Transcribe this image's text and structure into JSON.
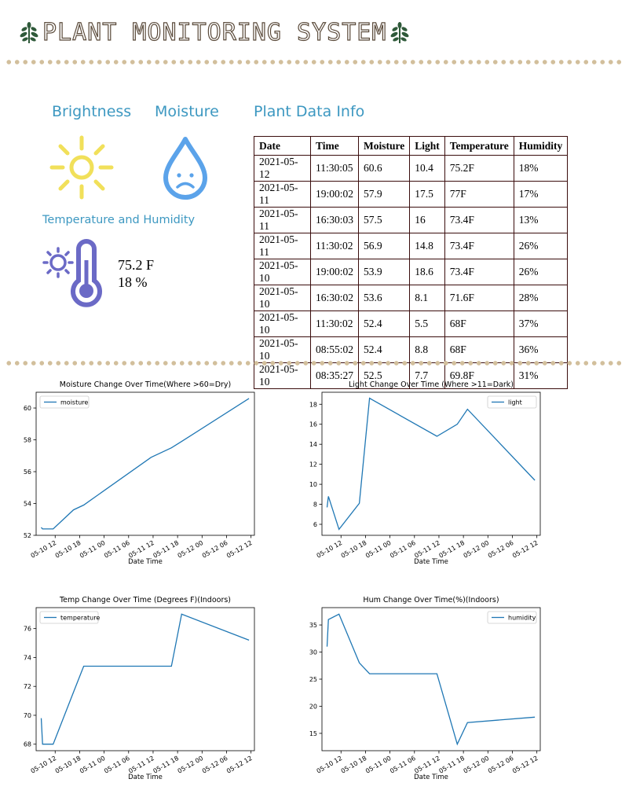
{
  "header": {
    "title": "PLANT MONITORING SYSTEM"
  },
  "sections": {
    "brightness": "Brightness",
    "moisture": "Moisture",
    "plant_data": "Plant Data Info",
    "temp_humidity": "Temperature and Humidity"
  },
  "current": {
    "temperature": "75.2 F",
    "humidity": "18 %"
  },
  "colors": {
    "accent": "#3d98c1",
    "sun": "#f1e05a",
    "drop": "#5ba3ea",
    "thermo": "#6b6ac6",
    "line": "#1f77b4",
    "dots": "#d2bf9c"
  },
  "icons": [
    "tree-icon",
    "sun-icon",
    "sad-water-drop-icon",
    "sun-thermometer-icon"
  ],
  "table": {
    "headers": [
      "Date",
      "Time",
      "Moisture",
      "Light",
      "Temperature",
      "Humidity"
    ],
    "rows": [
      [
        "2021-05-12",
        "11:30:05",
        "60.6",
        "10.4",
        "75.2F",
        "18%"
      ],
      [
        "2021-05-11",
        "19:00:02",
        "57.9",
        "17.5",
        "77F",
        "17%"
      ],
      [
        "2021-05-11",
        "16:30:03",
        "57.5",
        "16",
        "73.4F",
        "13%"
      ],
      [
        "2021-05-11",
        "11:30:02",
        "56.9",
        "14.8",
        "73.4F",
        "26%"
      ],
      [
        "2021-05-10",
        "19:00:02",
        "53.9",
        "18.6",
        "73.4F",
        "26%"
      ],
      [
        "2021-05-10",
        "16:30:02",
        "53.6",
        "8.1",
        "71.6F",
        "28%"
      ],
      [
        "2021-05-10",
        "11:30:02",
        "52.4",
        "5.5",
        "68F",
        "37%"
      ],
      [
        "2021-05-10",
        "08:55:02",
        "52.4",
        "8.8",
        "68F",
        "36%"
      ],
      [
        "2021-05-10",
        "08:35:27",
        "52.5",
        "7.7",
        "69.8F",
        "31%"
      ]
    ]
  },
  "chart_data": [
    {
      "type": "line",
      "title": "Moisture Change Over Time(Where >60=Dry)",
      "xlabel": "Date Time",
      "ylabel": "",
      "legend": "top-left",
      "grid": false,
      "x_ticks": [
        "05-10 12",
        "05-10 18",
        "05-11 00",
        "05-11 06",
        "05-11 12",
        "05-11 18",
        "05-12 00",
        "05-12 06",
        "05-12 12"
      ],
      "y_ticks": [
        52,
        54,
        56,
        58,
        60
      ],
      "xlim": [
        "2021-05-10 07:20",
        "2021-05-12 12:50"
      ],
      "ylim": [
        52.0,
        60.99
      ],
      "series": [
        {
          "name": "moisture",
          "x": [
            "2021-05-10 08:35:27",
            "2021-05-10 08:55:02",
            "2021-05-10 11:30:02",
            "2021-05-10 16:30:02",
            "2021-05-10 19:00:02",
            "2021-05-11 11:30:02",
            "2021-05-11 16:30:03",
            "2021-05-11 19:00:02",
            "2021-05-12 11:30:05"
          ],
          "values": [
            52.5,
            52.4,
            52.4,
            53.6,
            53.9,
            56.9,
            57.5,
            57.9,
            60.6
          ]
        }
      ]
    },
    {
      "type": "line",
      "title": "Light Change Over Time (Where >11=Dark)",
      "xlabel": "Date Time",
      "ylabel": "",
      "legend": "top-right",
      "grid": false,
      "x_ticks": [
        "05-10 12",
        "05-10 18",
        "05-11 00",
        "05-11 06",
        "05-11 12",
        "05-11 18",
        "05-12 00",
        "05-12 06",
        "05-12 12"
      ],
      "y_ticks": [
        6,
        8,
        10,
        12,
        14,
        16,
        18
      ],
      "xlim": [
        "2021-05-10 07:20",
        "2021-05-12 12:50"
      ],
      "ylim": [
        4.9,
        19.2
      ],
      "series": [
        {
          "name": "light",
          "x": [
            "2021-05-10 08:35:27",
            "2021-05-10 08:55:02",
            "2021-05-10 11:30:02",
            "2021-05-10 16:30:02",
            "2021-05-10 19:00:02",
            "2021-05-11 11:30:02",
            "2021-05-11 16:30:03",
            "2021-05-11 19:00:02",
            "2021-05-12 11:30:05"
          ],
          "values": [
            7.7,
            8.8,
            5.5,
            8.1,
            18.6,
            14.8,
            16,
            17.5,
            10.4
          ]
        }
      ]
    },
    {
      "type": "line",
      "title": "Temp Change Over Time (Degrees F)(Indoors)",
      "xlabel": "Date Time",
      "ylabel": "",
      "legend": "top-left",
      "grid": false,
      "x_ticks": [
        "05-10 12",
        "05-10 18",
        "05-11 00",
        "05-11 06",
        "05-11 12",
        "05-11 18",
        "05-12 00",
        "05-12 06",
        "05-12 12"
      ],
      "y_ticks": [
        68,
        70,
        72,
        74,
        76
      ],
      "xlim": [
        "2021-05-10 07:20",
        "2021-05-12 12:50"
      ],
      "ylim": [
        67.55,
        77.45
      ],
      "series": [
        {
          "name": "temperature",
          "x": [
            "2021-05-10 08:35:27",
            "2021-05-10 08:55:02",
            "2021-05-10 11:30:02",
            "2021-05-10 16:30:02",
            "2021-05-10 19:00:02",
            "2021-05-11 11:30:02",
            "2021-05-11 16:30:03",
            "2021-05-11 19:00:02",
            "2021-05-12 11:30:05"
          ],
          "values": [
            69.8,
            68,
            68,
            71.6,
            73.4,
            73.4,
            73.4,
            77,
            75.2
          ]
        }
      ]
    },
    {
      "type": "line",
      "title": "Hum Change Over Time(%)(Indoors)",
      "xlabel": "Date Time",
      "ylabel": "",
      "legend": "top-right",
      "grid": false,
      "x_ticks": [
        "05-10 12",
        "05-10 18",
        "05-11 00",
        "05-11 06",
        "05-11 12",
        "05-11 18",
        "05-12 00",
        "05-12 06",
        "05-12 12"
      ],
      "y_ticks": [
        15,
        20,
        25,
        30,
        35
      ],
      "xlim": [
        "2021-05-10 07:20",
        "2021-05-12 12:50"
      ],
      "ylim": [
        11.8,
        38.2
      ],
      "series": [
        {
          "name": "humidity",
          "x": [
            "2021-05-10 08:35:27",
            "2021-05-10 08:55:02",
            "2021-05-10 11:30:02",
            "2021-05-10 16:30:02",
            "2021-05-10 19:00:02",
            "2021-05-11 11:30:02",
            "2021-05-11 16:30:03",
            "2021-05-11 19:00:02",
            "2021-05-12 11:30:05"
          ],
          "values": [
            31,
            36,
            37,
            28,
            26,
            26,
            13,
            17,
            18
          ]
        }
      ]
    }
  ]
}
